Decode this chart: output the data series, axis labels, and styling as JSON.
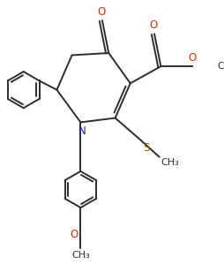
{
  "bg_color": "#ffffff",
  "line_color": "#2d2d2d",
  "atom_colors": {
    "N": "#1a1aaa",
    "O": "#cc3300",
    "S": "#886600"
  },
  "line_width": 1.4,
  "font_size": 8.5,
  "figsize": [
    2.54,
    3.0
  ],
  "dpi": 100
}
